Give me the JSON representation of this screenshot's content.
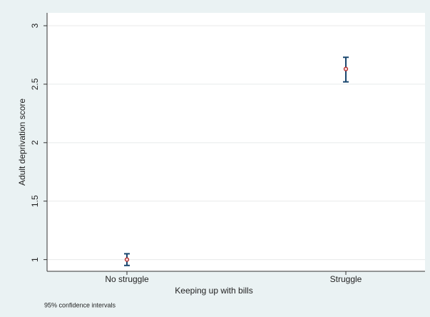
{
  "chart_data": {
    "type": "errorbar",
    "x_label": "Keeping up with bills",
    "y_label": "Adult deprivation score",
    "note": "95% confidence intervals",
    "categories": [
      "No struggle",
      "Struggle"
    ],
    "values": [
      1.0,
      2.63
    ],
    "ci_low": [
      0.95,
      2.52
    ],
    "ci_high": [
      1.05,
      2.73
    ],
    "marker_color": "#b22222",
    "bar_color": "#1a476f",
    "ylim": [
      0.9,
      3.11
    ],
    "yticks": [
      1,
      1.5,
      2,
      2.5,
      3
    ],
    "grid": true
  }
}
